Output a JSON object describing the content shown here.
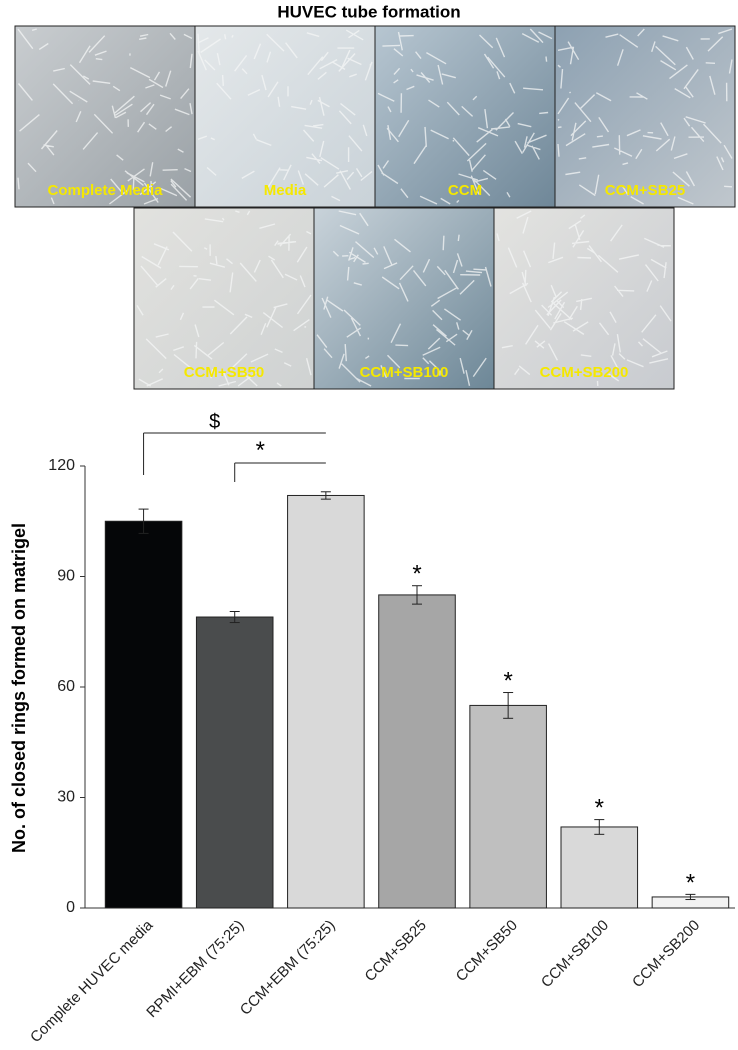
{
  "panel": {
    "title": "HUVEC tube formation",
    "images": [
      "Complete Media",
      "Media",
      "CCM",
      "CCM+SB25",
      "CCM+SB50",
      "CCM+SB100",
      "CCM+SB200"
    ]
  },
  "chart_data": {
    "type": "bar",
    "y_label": "No. of closed rings formed on matrigel",
    "categories": [
      "Complete HUVEC media",
      "RPMI+EBM (75:25)",
      "CCM+EBM (75:25)",
      "CCM+SB25",
      "CCM+SB50",
      "CCM+SB100",
      "CCM+SB200"
    ],
    "values": [
      105,
      79,
      112,
      85,
      55,
      22,
      3
    ],
    "errors": [
      3.3,
      1.5,
      1,
      2.5,
      3.5,
      2,
      0.7
    ],
    "colors": [
      "#050608",
      "#4a4c4d",
      "#d9d9d9",
      "#a6a6a6",
      "#bfbfbf",
      "#d9d9d9",
      "#f2f2f2"
    ],
    "ylim": [
      0,
      120
    ],
    "yticks": [
      0,
      30,
      60,
      90,
      120
    ],
    "grid": false,
    "annotations": [
      {
        "category": "CCM+SB25",
        "text": "*"
      },
      {
        "category": "CCM+SB50",
        "text": "*"
      },
      {
        "category": "CCM+SB100",
        "text": "*"
      },
      {
        "category": "CCM+SB200",
        "text": "*"
      }
    ],
    "comparisons": [
      {
        "from": "Complete HUVEC media",
        "to": "CCM+EBM (75:25)",
        "text": "$"
      },
      {
        "from": "RPMI+EBM (75:25)",
        "to": "CCM+EBM (75:25)",
        "text": "*"
      }
    ]
  }
}
